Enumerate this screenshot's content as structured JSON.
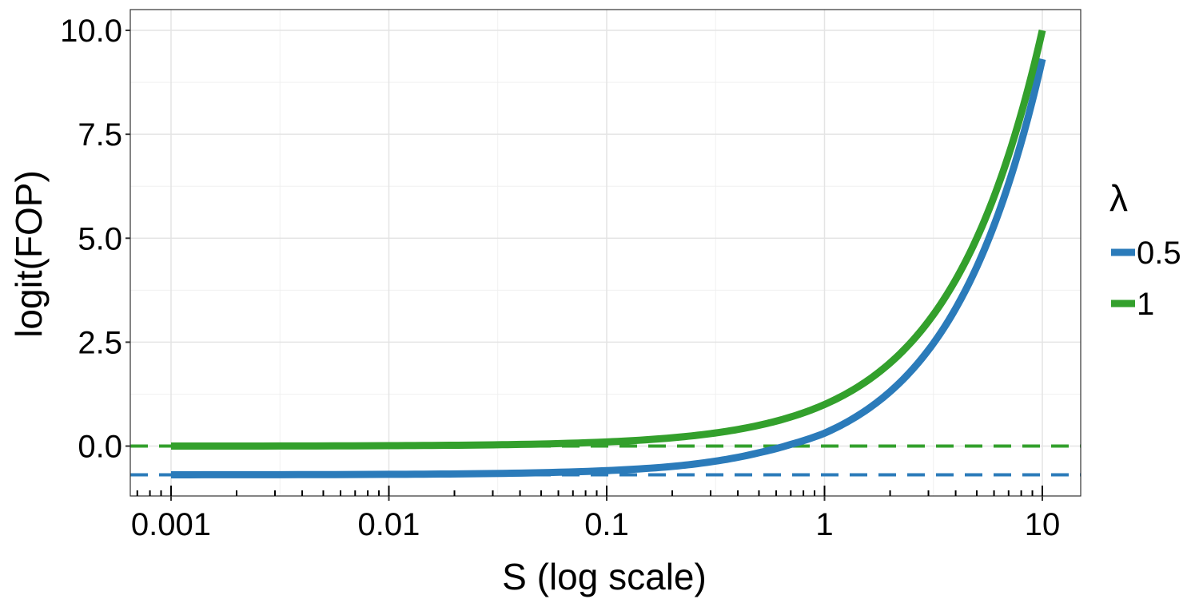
{
  "chart_data": {
    "type": "line",
    "title": "",
    "xlabel": "S (log scale)",
    "ylabel": "logit(FOP)",
    "x_scale": "log10",
    "xlim": [
      0.00065,
      15
    ],
    "ylim": [
      -1.2,
      10.5
    ],
    "x_ticks": [
      0.001,
      0.01,
      0.1,
      1,
      10
    ],
    "x_tick_labels": [
      "0.001",
      "0.01",
      "0.1",
      "1",
      "10"
    ],
    "y_ticks": [
      0,
      2.5,
      5,
      7.5,
      10
    ],
    "y_tick_labels": [
      "0.0",
      "2.5",
      "5.0",
      "7.5",
      "10.0"
    ],
    "grid": true,
    "minor_ticks_bottom": true,
    "legend": {
      "title": "λ",
      "position": "right",
      "entries": [
        {
          "label": "0.5",
          "color": "#2b7bba"
        },
        {
          "label": "1",
          "color": "#33a02c"
        }
      ]
    },
    "series": [
      {
        "name": "0.5",
        "color": "#2b7bba",
        "x": [
          0.001,
          0.01,
          0.03,
          0.1,
          0.2,
          0.3,
          0.5,
          0.7,
          1,
          1.5,
          2,
          3,
          4,
          5,
          7,
          10
        ],
        "y": [
          -0.69,
          -0.68,
          -0.66,
          -0.59,
          -0.49,
          -0.38,
          -0.16,
          0.04,
          0.31,
          0.81,
          1.31,
          2.31,
          3.31,
          4.31,
          6.31,
          9.31
        ]
      },
      {
        "name": "1",
        "color": "#33a02c",
        "x": [
          0.001,
          0.01,
          0.03,
          0.1,
          0.2,
          0.3,
          0.5,
          0.7,
          1,
          1.5,
          2,
          3,
          4,
          5,
          7,
          10
        ],
        "y": [
          0.0,
          0.01,
          0.03,
          0.1,
          0.2,
          0.3,
          0.5,
          0.7,
          1.0,
          1.5,
          2.0,
          3.0,
          4.0,
          5.0,
          7.0,
          10.0
        ]
      }
    ],
    "reference_lines": [
      {
        "series": "0.5",
        "y": -0.69,
        "style": "dashed",
        "color": "#2b7bba"
      },
      {
        "series": "1",
        "y": 0.0,
        "style": "dashed",
        "color": "#33a02c"
      }
    ]
  }
}
